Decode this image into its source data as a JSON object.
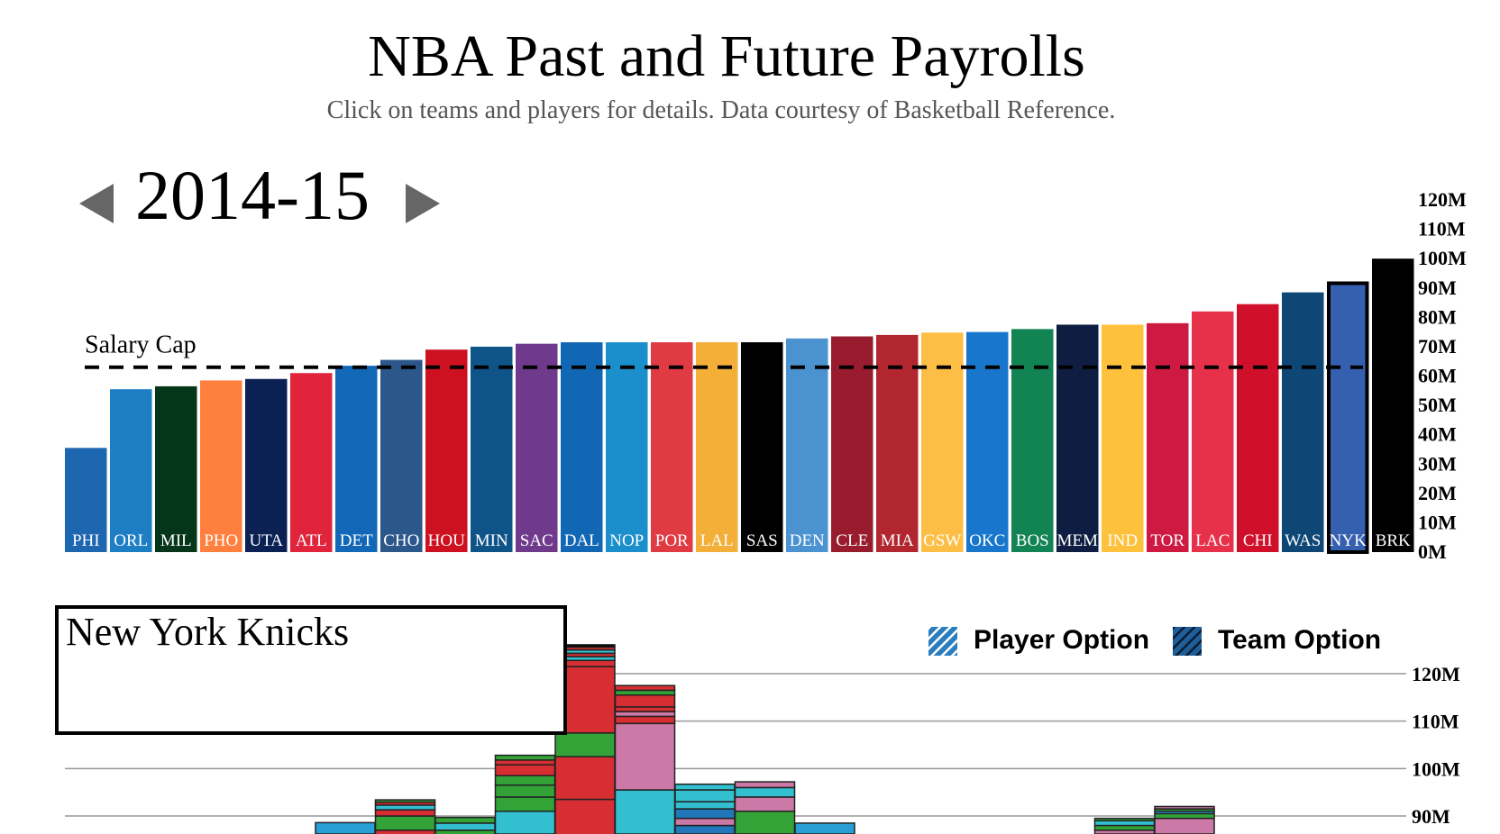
{
  "header": {
    "title": "NBA Past and Future Payrolls",
    "subtitle": "Click on teams and players for details. Data courtesy of Basketball Reference."
  },
  "season": {
    "label": "2014-15",
    "prev_icon": "left-triangle-icon",
    "next_icon": "right-triangle-icon"
  },
  "chart_data": [
    {
      "type": "bar",
      "y_unit": "millions of dollars",
      "ylim": [
        0,
        120
      ],
      "y_ticks": [
        "0M",
        "10M",
        "20M",
        "30M",
        "40M",
        "50M",
        "60M",
        "70M",
        "80M",
        "90M",
        "100M",
        "110M",
        "120M"
      ],
      "salary_cap_label": "Salary Cap",
      "salary_cap": 63,
      "selected_team": "NYK",
      "categories": [
        "PHI",
        "ORL",
        "MIL",
        "PHO",
        "UTA",
        "ATL",
        "DET",
        "CHO",
        "HOU",
        "MIN",
        "SAC",
        "DAL",
        "NOP",
        "POR",
        "LAL",
        "SAS",
        "DEN",
        "CLE",
        "MIA",
        "GSW",
        "OKC",
        "BOS",
        "MEM",
        "IND",
        "TOR",
        "LAC",
        "CHI",
        "WAS",
        "NYK",
        "BRK"
      ],
      "values": [
        35.5,
        55.5,
        56.5,
        58.5,
        59.0,
        61.0,
        63.5,
        65.5,
        69.0,
        70.0,
        71.0,
        71.5,
        71.5,
        71.5,
        71.5,
        71.5,
        72.8,
        73.5,
        74.0,
        74.8,
        75.0,
        76.0,
        77.5,
        77.5,
        78.0,
        82.0,
        84.5,
        88.5,
        91.0,
        100.0
      ],
      "colors": [
        "#1D66B0",
        "#1E7EC4",
        "#06361A",
        "#FF7F3E",
        "#0B2053",
        "#E0243C",
        "#1268B7",
        "#2B578A",
        "#CE1120",
        "#0F5488",
        "#6F3A8C",
        "#1267B4",
        "#1A8FCC",
        "#E03A42",
        "#F3AF38",
        "#000000",
        "#4B92D0",
        "#981C2E",
        "#B2262F",
        "#FDBE46",
        "#1877CC",
        "#128352",
        "#0F1D42",
        "#FEC13C",
        "#CE1A43",
        "#E7304A",
        "#D0102B",
        "#0E4675",
        "#3560AF",
        "#000000"
      ]
    },
    {
      "type": "bar",
      "stacked": true,
      "y_unit": "millions of dollars",
      "ylim": [
        88,
        124
      ],
      "y_ticks": [
        "90M",
        "100M",
        "110M",
        "120M"
      ],
      "legend": [
        "Player Option",
        "Team Option"
      ],
      "legend_placement": "top-right",
      "stacks": [
        [
          {
            "v": 88.6,
            "c": "#2A9FD6"
          }
        ],
        [
          {
            "v": 84,
            "c": "#2A9FD6"
          },
          {
            "v": 3,
            "c": "#D62E33"
          },
          {
            "v": 3,
            "c": "#33A338"
          },
          {
            "v": 1.3,
            "c": "#D62E33"
          },
          {
            "v": 1,
            "c": "#32BFCF"
          },
          {
            "v": 0.6,
            "c": "#D62E33"
          },
          {
            "v": 0.5,
            "c": "#33A338"
          }
        ],
        [
          {
            "v": 84,
            "c": "#2A9FD6"
          },
          {
            "v": 3,
            "c": "#33A338"
          },
          {
            "v": 1.5,
            "c": "#32BFCF"
          },
          {
            "v": 1.2,
            "c": "#33A338"
          }
        ],
        [
          {
            "v": 91,
            "c": "#32BFCF"
          },
          {
            "v": 3,
            "c": "#33A338"
          },
          {
            "v": 2.5,
            "c": "#33A338"
          },
          {
            "v": 2,
            "c": "#33A338"
          },
          {
            "v": 2.3,
            "c": "#D62E33"
          },
          {
            "v": 1,
            "c": "#D62E33"
          },
          {
            "v": 1,
            "c": "#33A338"
          }
        ],
        [
          {
            "v": 86,
            "c": "#2277BB"
          },
          {
            "v": 7.5,
            "c": "#D62E33"
          },
          {
            "v": 9,
            "c": "#D62E33"
          },
          {
            "v": 5,
            "c": "#33A338"
          },
          {
            "v": 14,
            "c": "#D62E33"
          },
          {
            "v": 1.3,
            "c": "#D62E33"
          },
          {
            "v": 0.8,
            "c": "#32BFCF"
          },
          {
            "v": 0.7,
            "c": "#D62E33"
          },
          {
            "v": 0.7,
            "c": "#32BFCF"
          },
          {
            "v": 0.6,
            "c": "#D62E33"
          },
          {
            "v": 0.5,
            "c": "#000000"
          }
        ],
        [
          {
            "v": 95.5,
            "c": "#32BFCF"
          },
          {
            "v": 14,
            "c": "#CC79A7"
          },
          {
            "v": 1.5,
            "c": "#D62E33"
          },
          {
            "v": 1,
            "c": "#CC79A7"
          },
          {
            "v": 1,
            "c": "#D62E33"
          },
          {
            "v": 2.5,
            "c": "#D62E33"
          },
          {
            "v": 1,
            "c": "#33A338"
          },
          {
            "v": 1,
            "c": "#D62E33"
          }
        ],
        [
          {
            "v": 88,
            "c": "#2277BB"
          },
          {
            "v": 1.5,
            "c": "#CC79A7"
          },
          {
            "v": 2,
            "c": "#2277BB"
          },
          {
            "v": 1.5,
            "c": "#32BFCF"
          },
          {
            "v": 2.5,
            "c": "#32BFCF"
          },
          {
            "v": 1.2,
            "c": "#32BFCF"
          }
        ],
        [
          {
            "v": 91,
            "c": "#33A338"
          },
          {
            "v": 3,
            "c": "#CC79A7"
          },
          {
            "v": 2,
            "c": "#32BFCF"
          },
          {
            "v": 1.2,
            "c": "#CC79A7"
          }
        ],
        [
          {
            "v": 88.5,
            "c": "#2A9FD6"
          }
        ],
        [],
        [],
        [],
        [],
        [
          {
            "v": 87,
            "c": "#CC79A7"
          },
          {
            "v": 1,
            "c": "#33A338"
          },
          {
            "v": 1,
            "c": "#32BFCF"
          },
          {
            "v": 0.5,
            "c": "#33A338"
          }
        ],
        [
          {
            "v": 89.5,
            "c": "#CC79A7"
          },
          {
            "v": 1,
            "c": "#33A338"
          },
          {
            "v": 0.5,
            "c": "#2A9FD6"
          },
          {
            "v": 0.5,
            "c": "#33A338"
          },
          {
            "v": 0.5,
            "c": "#CC79A7"
          }
        ]
      ]
    }
  ],
  "team_panel": {
    "name": "New York Knicks"
  },
  "colors": {
    "player_option": "#2A7EC0",
    "team_option": "#1E5E99",
    "arrows": "#666666",
    "gridline": "#999999"
  }
}
